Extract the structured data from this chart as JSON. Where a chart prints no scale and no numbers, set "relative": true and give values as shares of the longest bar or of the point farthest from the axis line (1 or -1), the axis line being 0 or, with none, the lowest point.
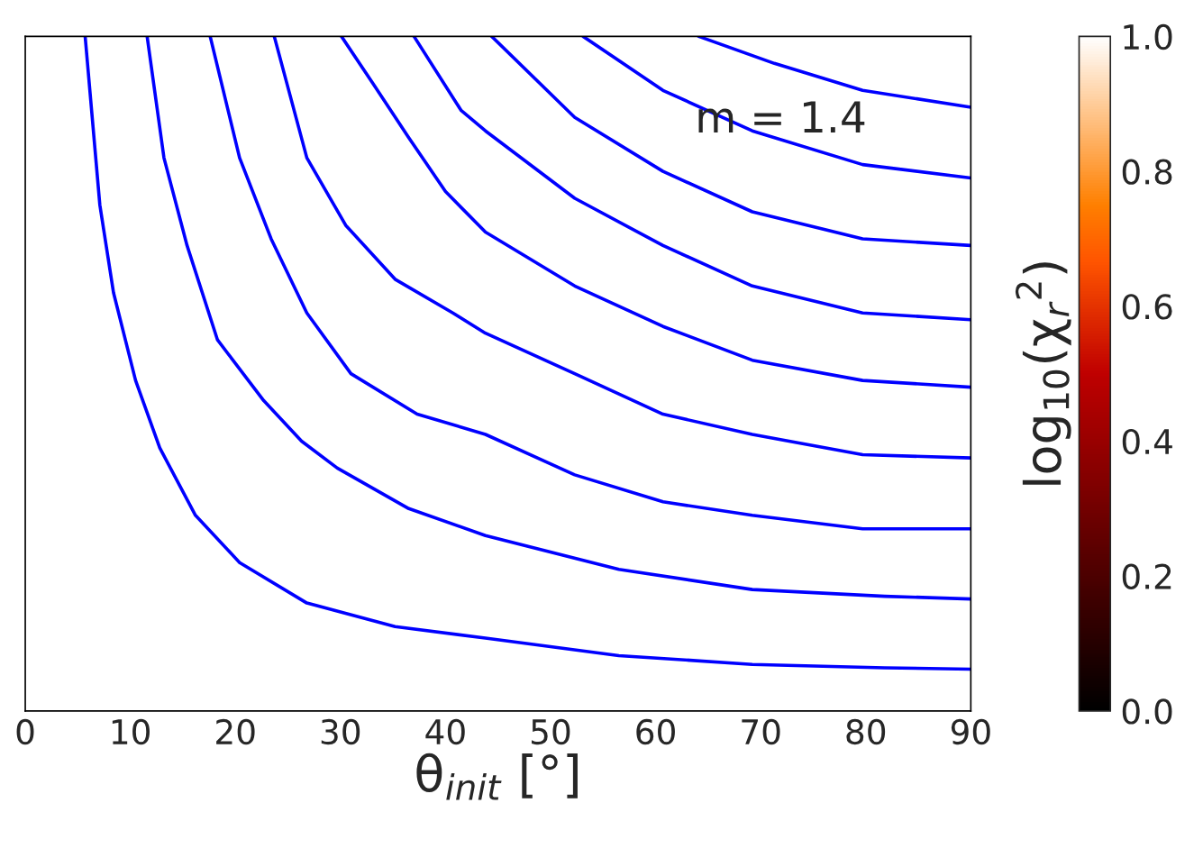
{
  "chart_data": {
    "type": "line",
    "relative": true,
    "xlabel": "θ$_{init}$ [°]",
    "clabel": "log$_{10}$(χ$_{r}$$^{2}$)",
    "annotations": [
      "m = 1.4"
    ],
    "xlim": [
      0,
      90
    ],
    "xticks": [
      0,
      10,
      20,
      30,
      40,
      50,
      60,
      70,
      80,
      90
    ],
    "clim": [
      0,
      1
    ],
    "cticks": [
      {
        "value": 0,
        "label": "0.0"
      },
      {
        "value": 0.2,
        "label": "0.2"
      },
      {
        "value": 0.4,
        "label": "0.4"
      },
      {
        "value": 0.6,
        "label": "0.6"
      },
      {
        "value": 0.8,
        "label": "0.8"
      },
      {
        "value": 1,
        "label": "1.0"
      }
    ],
    "tick_labels": "x",
    "grid": false,
    "legend": false,
    "series": [
      {
        "color": "#0000ff",
        "x": [
          5.7,
          7.1,
          8.4,
          10.5,
          12.8,
          16.2,
          20.4,
          26.8,
          35.2,
          43.8,
          56.5,
          69.2,
          81.8,
          90
        ],
        "values": [
          1.0,
          0.75,
          0.62,
          0.49,
          0.39,
          0.29,
          0.22,
          0.16,
          0.125,
          0.108,
          0.082,
          0.069,
          0.064,
          0.062
        ]
      },
      {
        "color": "#0000ff",
        "x": [
          11.6,
          13.2,
          15.4,
          18.3,
          22.7,
          26.3,
          29.7,
          36.5,
          43.8,
          56.5,
          69.2,
          81.8,
          90
        ],
        "values": [
          1.0,
          0.82,
          0.69,
          0.55,
          0.46,
          0.4,
          0.36,
          0.3,
          0.26,
          0.21,
          0.18,
          0.17,
          0.166
        ]
      },
      {
        "color": "#0000ff",
        "x": [
          17.6,
          20.4,
          23.4,
          26.8,
          31.0,
          37.3,
          43.8,
          52.3,
          60.7,
          69.2,
          79.7,
          90
        ],
        "values": [
          1.0,
          0.82,
          0.7,
          0.59,
          0.5,
          0.44,
          0.41,
          0.35,
          0.31,
          0.29,
          0.27,
          0.27
        ]
      },
      {
        "color": "#0000ff",
        "x": [
          23.7,
          26.8,
          30.5,
          35.2,
          40.7,
          43.8,
          52.3,
          60.7,
          69.2,
          79.7,
          90
        ],
        "values": [
          1.0,
          0.82,
          0.72,
          0.64,
          0.59,
          0.56,
          0.5,
          0.44,
          0.41,
          0.38,
          0.375
        ]
      },
      {
        "color": "#0000ff",
        "x": [
          30.1,
          33.1,
          36.5,
          40.0,
          43.8,
          52.3,
          60.7,
          69.2,
          79.7,
          90
        ],
        "values": [
          1.0,
          0.93,
          0.85,
          0.77,
          0.71,
          0.63,
          0.57,
          0.52,
          0.49,
          0.48
        ]
      },
      {
        "color": "#0000ff",
        "x": [
          37.0,
          41.5,
          43.8,
          52.3,
          60.7,
          69.2,
          79.7,
          90
        ],
        "values": [
          1.0,
          0.89,
          0.86,
          0.76,
          0.69,
          0.63,
          0.59,
          0.58
        ]
      },
      {
        "color": "#0000ff",
        "x": [
          44.4,
          52.3,
          60.7,
          69.2,
          79.7,
          90
        ],
        "values": [
          1.0,
          0.88,
          0.8,
          0.74,
          0.7,
          0.69
        ]
      },
      {
        "color": "#0000ff",
        "x": [
          53.1,
          60.7,
          69.2,
          79.7,
          90
        ],
        "values": [
          1.0,
          0.92,
          0.86,
          0.81,
          0.79
        ]
      },
      {
        "color": "#0000ff",
        "x": [
          64.1,
          71.3,
          79.7,
          90
        ],
        "values": [
          1.0,
          0.96,
          0.92,
          0.895
        ]
      }
    ]
  }
}
